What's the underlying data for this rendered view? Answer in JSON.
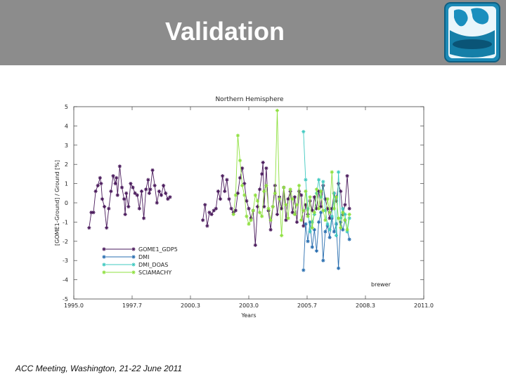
{
  "slide": {
    "title": "Validation",
    "footer": "ACC Meeting, Washington, 21-22 June 2011"
  },
  "chart_data": {
    "type": "line",
    "title": "Northern Hemisphere",
    "xlabel": "Years",
    "ylabel": "[GOME1-Ground] / Ground [%]",
    "xlim": [
      1995.0,
      2011.0
    ],
    "ylim": [
      -5,
      5
    ],
    "xticks": [
      "1995.0",
      "1997.7",
      "2000.3",
      "2003.0",
      "2005.7",
      "2008.3",
      "2011.0"
    ],
    "yticks": [
      "5",
      "4",
      "3",
      "2",
      "1",
      "0",
      "-1",
      "-2",
      "-3",
      "-4",
      "-5"
    ],
    "annotation": "brewer",
    "legend_position": "bottom-left",
    "grid": false,
    "series": [
      {
        "name": "GOME1_GDP5",
        "color": "#4a1a5c",
        "points": [
          [
            1995.7,
            -1.3
          ],
          [
            1995.8,
            -0.5
          ],
          [
            1995.9,
            -0.5
          ],
          [
            1996.0,
            0.6
          ],
          [
            1996.1,
            0.9
          ],
          [
            1996.2,
            1.3
          ],
          [
            1996.25,
            1.0
          ],
          [
            1996.3,
            0.2
          ],
          [
            1996.4,
            -0.2
          ],
          [
            1996.5,
            -1.3
          ],
          [
            1996.6,
            -0.3
          ],
          [
            1996.7,
            0.6
          ],
          [
            1996.8,
            1.4
          ],
          [
            1996.9,
            1.0
          ],
          [
            1996.95,
            1.3
          ],
          [
            1997.0,
            0.4
          ],
          [
            1997.1,
            1.9
          ],
          [
            1997.2,
            0.8
          ],
          [
            1997.3,
            0.2
          ],
          [
            1997.35,
            -0.6
          ],
          [
            1997.4,
            0.5
          ],
          [
            1997.5,
            -0.2
          ],
          [
            1997.6,
            1.0
          ],
          [
            1997.7,
            0.8
          ],
          [
            1997.8,
            0.5
          ],
          [
            1997.9,
            0.4
          ],
          [
            1998.0,
            -0.3
          ],
          [
            1998.1,
            0.6
          ],
          [
            1998.2,
            -0.8
          ],
          [
            1998.3,
            0.7
          ],
          [
            1998.4,
            1.2
          ],
          [
            1998.45,
            0.5
          ],
          [
            1998.5,
            0.7
          ],
          [
            1998.6,
            1.7
          ],
          [
            1998.7,
            0.9
          ],
          [
            1998.8,
            0.0
          ],
          [
            1998.9,
            0.6
          ],
          [
            1999.0,
            0.4
          ],
          [
            1999.1,
            0.9
          ],
          [
            1999.2,
            0.5
          ],
          [
            1999.3,
            0.2
          ],
          [
            1999.4,
            0.3
          ],
          [
            2000.9,
            -0.9
          ],
          [
            2001.0,
            -0.1
          ],
          [
            2001.1,
            -1.2
          ],
          [
            2001.2,
            -0.5
          ],
          [
            2001.3,
            -0.6
          ],
          [
            2001.4,
            -0.4
          ],
          [
            2001.5,
            -0.3
          ],
          [
            2001.6,
            0.6
          ],
          [
            2001.7,
            0.2
          ],
          [
            2001.8,
            1.4
          ],
          [
            2001.9,
            0.6
          ],
          [
            2002.0,
            1.2
          ],
          [
            2002.1,
            0.2
          ],
          [
            2002.2,
            -0.3
          ],
          [
            2002.3,
            -0.5
          ],
          [
            2002.4,
            -0.4
          ],
          [
            2002.5,
            0.5
          ],
          [
            2002.6,
            1.3
          ],
          [
            2002.7,
            1.8
          ],
          [
            2002.8,
            1.0
          ],
          [
            2002.9,
            0.1
          ],
          [
            2003.0,
            -0.3
          ],
          [
            2003.1,
            -0.8
          ],
          [
            2003.2,
            -0.4
          ],
          [
            2003.3,
            -2.2
          ],
          [
            2003.4,
            -0.2
          ],
          [
            2003.5,
            0.7
          ],
          [
            2003.6,
            1.5
          ],
          [
            2003.65,
            2.1
          ],
          [
            2003.7,
            -0.2
          ],
          [
            2003.8,
            1.8
          ],
          [
            2003.9,
            -0.4
          ],
          [
            2004.0,
            -1.4
          ],
          [
            2004.1,
            -0.2
          ],
          [
            2004.2,
            0.9
          ],
          [
            2004.3,
            -0.6
          ],
          [
            2004.4,
            0.3
          ],
          [
            2004.5,
            -0.3
          ],
          [
            2004.6,
            0.8
          ],
          [
            2004.7,
            -0.9
          ],
          [
            2004.8,
            0.2
          ],
          [
            2004.9,
            0.6
          ],
          [
            2005.0,
            -0.5
          ],
          [
            2005.1,
            0.3
          ],
          [
            2005.2,
            -1.0
          ],
          [
            2005.3,
            0.6
          ],
          [
            2005.4,
            0.4
          ],
          [
            2005.5,
            -1.2
          ],
          [
            2005.6,
            -0.1
          ],
          [
            2005.7,
            -0.6
          ],
          [
            2005.8,
            0.1
          ],
          [
            2005.9,
            -0.4
          ],
          [
            2006.0,
            0.3
          ],
          [
            2006.1,
            -0.3
          ],
          [
            2006.2,
            0.6
          ],
          [
            2006.3,
            -0.2
          ],
          [
            2006.4,
            0.9
          ],
          [
            2006.5,
            0.2
          ],
          [
            2006.6,
            -0.3
          ],
          [
            2006.7,
            -0.8
          ],
          [
            2006.8,
            -0.3
          ],
          [
            2006.9,
            0.5
          ],
          [
            2007.0,
            0.1
          ],
          [
            2007.1,
            1.0
          ],
          [
            2007.2,
            0.6
          ],
          [
            2007.3,
            -0.6
          ],
          [
            2007.4,
            -0.1
          ],
          [
            2007.5,
            1.4
          ],
          [
            2007.6,
            -0.3
          ]
        ]
      },
      {
        "name": "DMI",
        "color": "#2a6fb0",
        "points": [
          [
            2005.5,
            -3.5
          ],
          [
            2005.6,
            -1.1
          ],
          [
            2005.7,
            -2.0
          ],
          [
            2005.8,
            -1.0
          ],
          [
            2005.9,
            -2.3
          ],
          [
            2006.0,
            -1.4
          ],
          [
            2006.1,
            -2.5
          ],
          [
            2006.2,
            -1.0
          ],
          [
            2006.3,
            -0.5
          ],
          [
            2006.4,
            -3.0
          ],
          [
            2006.5,
            -1.5
          ],
          [
            2006.6,
            -1.2
          ],
          [
            2006.7,
            -1.8
          ],
          [
            2006.8,
            -0.8
          ],
          [
            2006.9,
            -1.5
          ],
          [
            2007.0,
            -1.1
          ],
          [
            2007.1,
            -3.4
          ],
          [
            2007.2,
            -1.0
          ],
          [
            2007.3,
            -1.4
          ],
          [
            2007.4,
            -0.9
          ],
          [
            2007.6,
            -1.9
          ]
        ]
      },
      {
        "name": "DMI_DOAS",
        "color": "#3fc9c0",
        "points": [
          [
            2005.5,
            3.7
          ],
          [
            2005.6,
            1.2
          ],
          [
            2005.7,
            -0.3
          ],
          [
            2005.8,
            -1.5
          ],
          [
            2005.9,
            -1.0
          ],
          [
            2006.0,
            -0.6
          ],
          [
            2006.1,
            0.5
          ],
          [
            2006.2,
            1.2
          ],
          [
            2006.3,
            0.3
          ],
          [
            2006.4,
            1.1
          ],
          [
            2006.5,
            -0.4
          ],
          [
            2006.6,
            -1.1
          ],
          [
            2006.7,
            -1.4
          ],
          [
            2006.8,
            -0.7
          ],
          [
            2006.9,
            0.5
          ],
          [
            2007.0,
            -1.7
          ],
          [
            2007.1,
            1.6
          ],
          [
            2007.2,
            -0.8
          ],
          [
            2007.3,
            -0.3
          ],
          [
            2007.4,
            -0.6
          ],
          [
            2007.5,
            -1.5
          ],
          [
            2007.6,
            -0.8
          ]
        ]
      },
      {
        "name": "SCIAMACHY",
        "color": "#8fe040",
        "points": [
          [
            2002.3,
            -0.6
          ],
          [
            2002.4,
            0.4
          ],
          [
            2002.5,
            3.5
          ],
          [
            2002.6,
            2.2
          ],
          [
            2002.7,
            0.9
          ],
          [
            2002.8,
            0.4
          ],
          [
            2002.9,
            -0.7
          ],
          [
            2003.0,
            -1.1
          ],
          [
            2003.1,
            -0.9
          ],
          [
            2003.2,
            -0.4
          ],
          [
            2003.3,
            0.4
          ],
          [
            2003.4,
            0.1
          ],
          [
            2003.5,
            -0.5
          ],
          [
            2003.6,
            -0.7
          ],
          [
            2003.7,
            0.6
          ],
          [
            2003.8,
            0.9
          ],
          [
            2003.9,
            -0.3
          ],
          [
            2004.0,
            -0.9
          ],
          [
            2004.1,
            -0.2
          ],
          [
            2004.2,
            0.5
          ],
          [
            2004.3,
            4.8
          ],
          [
            2004.4,
            0.2
          ],
          [
            2004.5,
            -1.7
          ],
          [
            2004.6,
            0.8
          ],
          [
            2004.7,
            -0.1
          ],
          [
            2004.8,
            -0.8
          ],
          [
            2004.9,
            0.7
          ],
          [
            2005.0,
            0.2
          ],
          [
            2005.1,
            -0.6
          ],
          [
            2005.2,
            -0.1
          ],
          [
            2005.3,
            0.9
          ],
          [
            2005.4,
            -0.9
          ],
          [
            2005.5,
            -0.4
          ],
          [
            2005.6,
            0.6
          ],
          [
            2005.7,
            -0.7
          ],
          [
            2005.8,
            0.3
          ],
          [
            2005.9,
            -1.3
          ],
          [
            2006.0,
            -0.5
          ],
          [
            2006.1,
            0.7
          ],
          [
            2006.2,
            -0.3
          ],
          [
            2006.3,
            0.6
          ],
          [
            2006.4,
            -0.4
          ],
          [
            2006.5,
            -0.9
          ],
          [
            2006.6,
            0.2
          ],
          [
            2006.7,
            -0.5
          ],
          [
            2006.8,
            1.6
          ],
          [
            2006.9,
            -0.3
          ],
          [
            2007.0,
            0.3
          ],
          [
            2007.1,
            -0.8
          ],
          [
            2007.2,
            -1.3
          ],
          [
            2007.3,
            -0.5
          ],
          [
            2007.4,
            -0.9
          ],
          [
            2007.5,
            -1.4
          ],
          [
            2007.6,
            -0.6
          ]
        ]
      }
    ]
  }
}
